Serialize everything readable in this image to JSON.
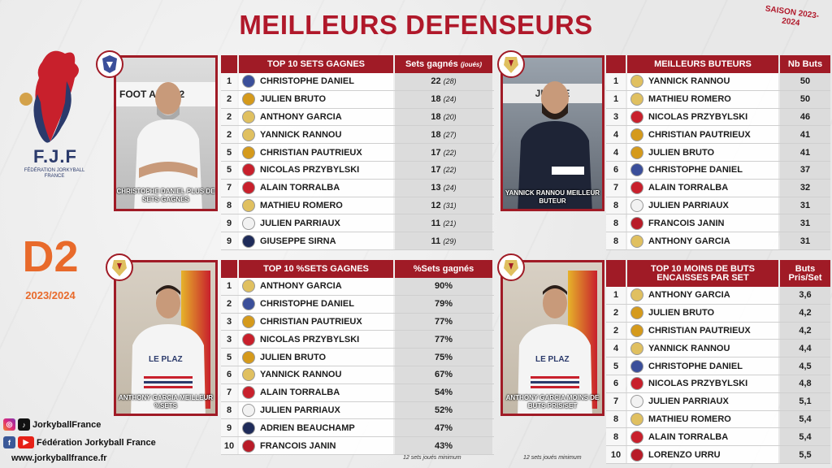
{
  "title": "MEILLEURS DEFENSEURS",
  "season": "SAISON 2023-2024",
  "logo": {
    "brand": "F.J.F",
    "subtitle": "FÉDÉRATION JORKYBALL FRANCE"
  },
  "division": "D2",
  "division_year": "2023/2024",
  "photos": [
    {
      "caption": "CHRISTOPHE DANIEL PLUS DE SETS GAGNES",
      "sign": "FOOT  ANCE 2"
    },
    {
      "caption": "YANNICK RANNOU MEILLEUR BUTEUR",
      "sign": "JURIZE"
    },
    {
      "caption": "ANTHONY GARCIA MEILLEUR %SETS",
      "shirt": "LE PLAZ"
    },
    {
      "caption": "ANTHONY GARCIA MOINS DE BUTS PRIS/SET",
      "shirt": "LE PLAZ"
    }
  ],
  "tables": {
    "sets_gagnes": {
      "header": "TOP 10 SETS GAGNES",
      "value_header": "Sets gagnés",
      "value_header_sub": "(joués)",
      "rows": [
        {
          "rank": "1",
          "name": "CHRISTOPHE DANIEL",
          "value": "22",
          "sub": "(28)",
          "club": "#3b4f9a"
        },
        {
          "rank": "2",
          "name": "JULIEN BRUTO",
          "value": "18",
          "sub": "(24)",
          "club": "#d59a1c"
        },
        {
          "rank": "2",
          "name": "ANTHONY GARCIA",
          "value": "18",
          "sub": "(20)",
          "club": "#e0c060"
        },
        {
          "rank": "2",
          "name": "YANNICK RANNOU",
          "value": "18",
          "sub": "(27)",
          "club": "#e0c060"
        },
        {
          "rank": "5",
          "name": "CHRISTIAN PAUTRIEUX",
          "value": "17",
          "sub": "(22)",
          "club": "#d59a1c"
        },
        {
          "rank": "5",
          "name": "NICOLAS PRZYBYLSKI",
          "value": "17",
          "sub": "(22)",
          "club": "#c8202c"
        },
        {
          "rank": "7",
          "name": "ALAIN TORRALBA",
          "value": "13",
          "sub": "(24)",
          "club": "#c8202c"
        },
        {
          "rank": "8",
          "name": "MATHIEU ROMERO",
          "value": "12",
          "sub": "(31)",
          "club": "#e0c060"
        },
        {
          "rank": "9",
          "name": "JULIEN PARRIAUX",
          "value": "11",
          "sub": "(21)",
          "club": "#f2f2f2"
        },
        {
          "rank": "9",
          "name": "GIUSEPPE SIRNA",
          "value": "11",
          "sub": "(29)",
          "club": "#1f2c5a"
        }
      ]
    },
    "buteurs": {
      "header": "MEILLEURS BUTEURS",
      "value_header": "Nb Buts",
      "rows": [
        {
          "rank": "1",
          "name": "YANNICK RANNOU",
          "value": "50",
          "club": "#e0c060"
        },
        {
          "rank": "1",
          "name": "MATHIEU ROMERO",
          "value": "50",
          "club": "#e0c060"
        },
        {
          "rank": "3",
          "name": "NICOLAS PRZYBYLSKI",
          "value": "46",
          "club": "#c8202c"
        },
        {
          "rank": "4",
          "name": "CHRISTIAN PAUTRIEUX",
          "value": "41",
          "club": "#d59a1c"
        },
        {
          "rank": "4",
          "name": "JULIEN BRUTO",
          "value": "41",
          "club": "#d59a1c"
        },
        {
          "rank": "6",
          "name": "CHRISTOPHE DANIEL",
          "value": "37",
          "club": "#3b4f9a"
        },
        {
          "rank": "7",
          "name": "ALAIN TORRALBA",
          "value": "32",
          "club": "#c8202c"
        },
        {
          "rank": "8",
          "name": "JULIEN PARRIAUX",
          "value": "31",
          "club": "#f2f2f2"
        },
        {
          "rank": "8",
          "name": "FRANCOIS JANIN",
          "value": "31",
          "club": "#b81c28"
        },
        {
          "rank": "8",
          "name": "ANTHONY GARCIA",
          "value": "31",
          "club": "#e0c060"
        }
      ]
    },
    "pct_sets": {
      "header": "TOP 10 %SETS GAGNES",
      "value_header": "%Sets gagnés",
      "note": "12 sets joués minimum",
      "rows": [
        {
          "rank": "1",
          "name": "ANTHONY GARCIA",
          "value": "90%",
          "club": "#e0c060"
        },
        {
          "rank": "2",
          "name": "CHRISTOPHE DANIEL",
          "value": "79%",
          "club": "#3b4f9a"
        },
        {
          "rank": "3",
          "name": "CHRISTIAN PAUTRIEUX",
          "value": "77%",
          "club": "#d59a1c"
        },
        {
          "rank": "3",
          "name": "NICOLAS PRZYBYLSKI",
          "value": "77%",
          "club": "#c8202c"
        },
        {
          "rank": "5",
          "name": "JULIEN BRUTO",
          "value": "75%",
          "club": "#d59a1c"
        },
        {
          "rank": "6",
          "name": "YANNICK RANNOU",
          "value": "67%",
          "club": "#e0c060"
        },
        {
          "rank": "7",
          "name": "ALAIN TORRALBA",
          "value": "54%",
          "club": "#c8202c"
        },
        {
          "rank": "8",
          "name": "JULIEN PARRIAUX",
          "value": "52%",
          "club": "#f2f2f2"
        },
        {
          "rank": "9",
          "name": "ADRIEN BEAUCHAMP",
          "value": "47%",
          "club": "#1f2c5a"
        },
        {
          "rank": "10",
          "name": "FRANCOIS JANIN",
          "value": "43%",
          "club": "#b81c28"
        }
      ]
    },
    "buts_encaisses": {
      "header": "TOP 10 MOINS DE BUTS ENCAISSES PAR SET",
      "value_header": "Buts Pris/Set",
      "note": "12 sets joués minimum",
      "rows": [
        {
          "rank": "1",
          "name": "ANTHONY GARCIA",
          "value": "3,6",
          "club": "#e0c060"
        },
        {
          "rank": "2",
          "name": "JULIEN BRUTO",
          "value": "4,2",
          "club": "#d59a1c"
        },
        {
          "rank": "2",
          "name": "CHRISTIAN PAUTRIEUX",
          "value": "4,2",
          "club": "#d59a1c"
        },
        {
          "rank": "4",
          "name": "YANNICK RANNOU",
          "value": "4,4",
          "club": "#e0c060"
        },
        {
          "rank": "5",
          "name": "CHRISTOPHE DANIEL",
          "value": "4,5",
          "club": "#3b4f9a"
        },
        {
          "rank": "6",
          "name": "NICOLAS PRZYBYLSKI",
          "value": "4,8",
          "club": "#c8202c"
        },
        {
          "rank": "7",
          "name": "JULIEN PARRIAUX",
          "value": "5,1",
          "club": "#f2f2f2"
        },
        {
          "rank": "8",
          "name": "MATHIEU ROMERO",
          "value": "5,4",
          "club": "#e0c060"
        },
        {
          "rank": "8",
          "name": "ALAIN TORRALBA",
          "value": "5,4",
          "club": "#c8202c"
        },
        {
          "rank": "10",
          "name": "LORENZO URRU",
          "value": "5,5",
          "club": "#b81c28"
        }
      ]
    }
  },
  "social": {
    "handle": "JorkyballFrance",
    "page": "Fédération Jorkyball France",
    "site": "www.jorkyballfrance.fr"
  },
  "colors": {
    "accent": "#a01b26",
    "title": "#b0182a",
    "division": "#e86a2b"
  }
}
